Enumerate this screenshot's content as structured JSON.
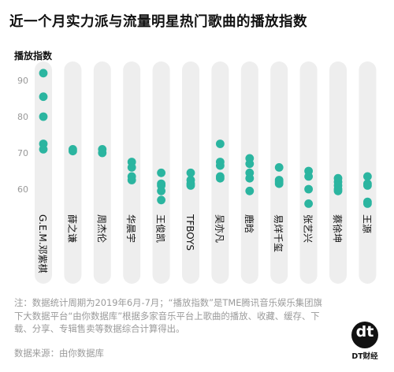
{
  "title": "近一个月实力派与流量明星热门歌曲的播放指数",
  "note": "注：数据统计周期为2019年6月-7月；“播放指数”是TME腾讯音乐娱乐集团旗下大数据平台“由你数据库”根据多家音乐平台上歌曲的播放、收藏、缓存、下载、分享、专辑售卖等数据综合计算得出。",
  "source": "数据来源：由你数据库",
  "logo": {
    "mark": "dt",
    "text": "DT财经"
  },
  "colors": {
    "dot": "#2bb5a0",
    "band": "#eeeeee",
    "axis_text": "#999999"
  },
  "chart_data": {
    "type": "scatter",
    "title": "近一个月实力派与流量明星热门歌曲的播放指数",
    "ylabel": "播放指数",
    "xlabel": "",
    "ylim": [
      55,
      95
    ],
    "yticks": [
      60,
      70,
      80,
      90
    ],
    "grid": false,
    "categories": [
      "G.E.M.邓紫棋",
      "薛之谦",
      "周杰伦",
      "华晨宇",
      "王俊凯",
      "TFBOYS",
      "吴亦凡",
      "鹿晗",
      "易烊千玺",
      "张艺兴",
      "蔡徐坤",
      "王源"
    ],
    "series": [
      {
        "values": [
          [
            92,
            85.5,
            80,
            72.5,
            71
          ],
          [
            71,
            70.5
          ],
          [
            71,
            70
          ],
          [
            67.5,
            66,
            63.5,
            62.5
          ],
          [
            64.5,
            61.5,
            61,
            59.5,
            57
          ],
          [
            64.5,
            62.5,
            61.5,
            61
          ],
          [
            72.5,
            67.5,
            66.5,
            63.5,
            63
          ],
          [
            68.5,
            67,
            64.5,
            63,
            59.5
          ],
          [
            66,
            62.5,
            62,
            61.5
          ],
          [
            65,
            63.5,
            60,
            56
          ],
          [
            63,
            62,
            61,
            60,
            59.5
          ],
          [
            63.5,
            61.5,
            61,
            56.5,
            56
          ]
        ]
      }
    ]
  }
}
